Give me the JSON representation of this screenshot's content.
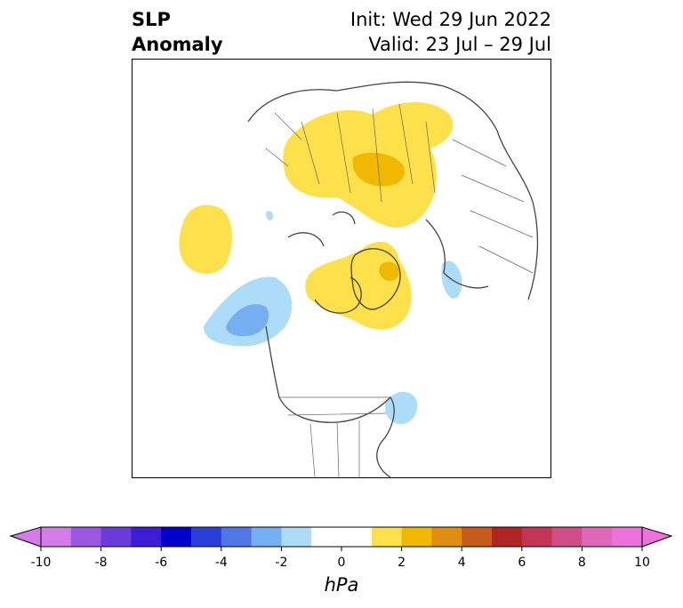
{
  "title": {
    "line1": "SLP",
    "line2": "Anomaly"
  },
  "init": "Init: Wed 29 Jun 2022",
  "valid": "Valid: 23 Jul – 29 Jul",
  "colorbar": {
    "units": "hPa",
    "ticks": [
      "-10",
      "-8",
      "-6",
      "-4",
      "-2",
      "0",
      "2",
      "4",
      "6",
      "8",
      "10"
    ],
    "colors": [
      "#d37be6",
      "#9a57e0",
      "#6a3bd9",
      "#3d1dd6",
      "#0000cd",
      "#2a3ed9",
      "#4f78e6",
      "#76aef2",
      "#acdcf8",
      "#ffffff",
      "#ffffff",
      "#fde04a",
      "#f0b800",
      "#e08e12",
      "#c65c1a",
      "#b02424",
      "#c43456",
      "#d04e86",
      "#df67b8",
      "#eb72da"
    ]
  },
  "map": {
    "region": "Northern Hemisphere polar projection",
    "anomaly_colors": {
      "positive_light": "#fde04a",
      "positive_dark": "#f0b800",
      "negative_light": "#acdcf8",
      "negative_mid": "#76aef2"
    }
  }
}
